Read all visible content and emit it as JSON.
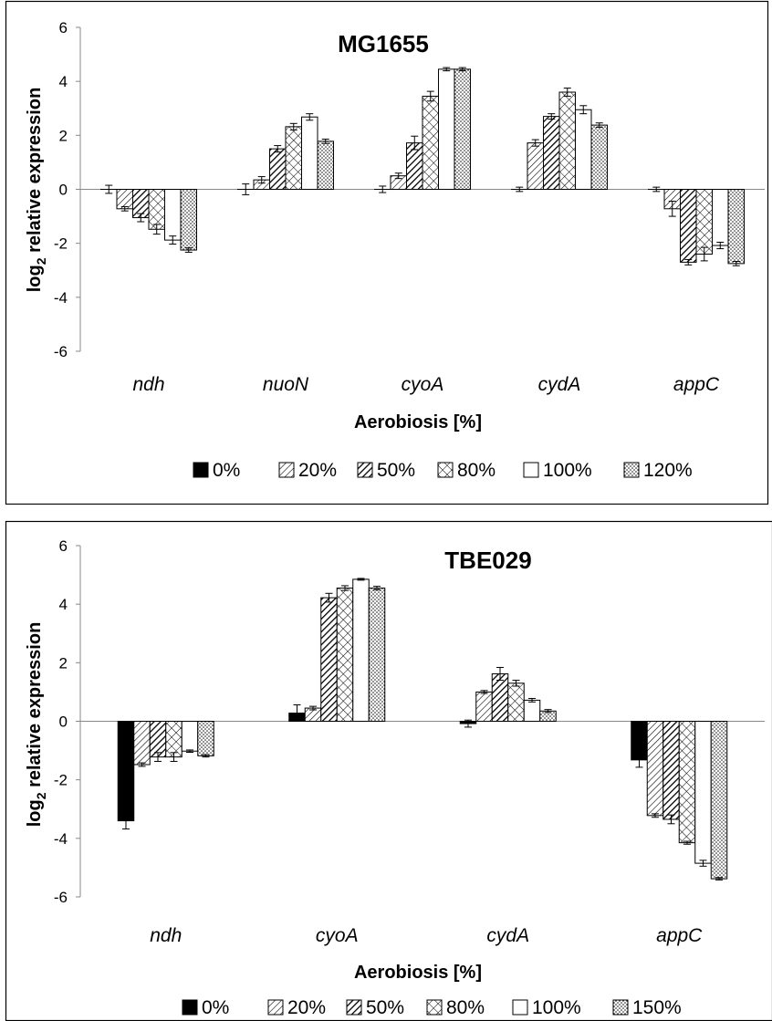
{
  "chart_data": [
    {
      "type": "bar",
      "title": "MG1655",
      "xlabel": "Aerobiosis [%]",
      "ylabel_main": "log",
      "ylabel_sub": "2",
      "ylabel_rest": " relative expression",
      "ylim": [
        -6,
        6
      ],
      "yticks": [
        -6,
        -4,
        -2,
        0,
        2,
        4,
        6
      ],
      "grid": false,
      "legend_position": "bottom",
      "categories": [
        "ndh",
        "nuoN",
        "cyoA",
        "cydA",
        "appC"
      ],
      "series": [
        {
          "name": "0%",
          "pattern": "solid-black",
          "values": [
            0,
            0,
            0,
            0,
            0
          ],
          "errors": [
            0.15,
            0.2,
            0.12,
            0.08,
            0.08
          ]
        },
        {
          "name": "20%",
          "pattern": "diagonal-thin",
          "values": [
            -0.72,
            0.35,
            0.5,
            1.72,
            -0.72
          ],
          "errors": [
            0.08,
            0.12,
            0.1,
            0.12,
            0.28
          ]
        },
        {
          "name": "50%",
          "pattern": "diagonal-thick",
          "values": [
            -1.05,
            1.5,
            1.72,
            2.7,
            -2.7
          ],
          "errors": [
            0.15,
            0.12,
            0.25,
            0.1,
            0.1
          ]
        },
        {
          "name": "80%",
          "pattern": "crosshatch",
          "values": [
            -1.48,
            2.32,
            3.45,
            3.6,
            -2.4
          ],
          "errors": [
            0.18,
            0.12,
            0.18,
            0.15,
            0.25
          ]
        },
        {
          "name": "100%",
          "pattern": "white",
          "values": [
            -1.88,
            2.68,
            4.45,
            2.95,
            -2.08
          ],
          "errors": [
            0.15,
            0.12,
            0.06,
            0.15,
            0.12
          ]
        },
        {
          "name": "120%",
          "pattern": "dots",
          "values": [
            -2.25,
            1.78,
            4.45,
            2.38,
            -2.75
          ],
          "errors": [
            0.08,
            0.08,
            0.06,
            0.08,
            0.08
          ]
        }
      ]
    },
    {
      "type": "bar",
      "title": "TBE029",
      "xlabel": "Aerobiosis [%]",
      "ylabel_main": "log",
      "ylabel_sub": "2",
      "ylabel_rest": " relative expression",
      "ylim": [
        -6,
        6
      ],
      "yticks": [
        -6,
        -4,
        -2,
        0,
        2,
        4,
        6
      ],
      "grid": false,
      "legend_position": "bottom",
      "categories": [
        "ndh",
        "cyoA",
        "cydA",
        "appC"
      ],
      "series": [
        {
          "name": "0%",
          "pattern": "solid-black",
          "values": [
            -3.4,
            0.28,
            -0.08,
            -1.32
          ],
          "errors": [
            0.28,
            0.28,
            0.12,
            0.25
          ]
        },
        {
          "name": "20%",
          "pattern": "diagonal-thin",
          "values": [
            -1.48,
            0.45,
            1.0,
            -3.22
          ],
          "errors": [
            0.06,
            0.06,
            0.05,
            0.06
          ]
        },
        {
          "name": "50%",
          "pattern": "diagonal-thick",
          "values": [
            -1.22,
            4.22,
            1.62,
            -3.35
          ],
          "errors": [
            0.15,
            0.15,
            0.22,
            0.15
          ]
        },
        {
          "name": "80%",
          "pattern": "crosshatch",
          "values": [
            -1.22,
            4.55,
            1.3,
            -4.15
          ],
          "errors": [
            0.15,
            0.08,
            0.1,
            0.05
          ]
        },
        {
          "name": "100%",
          "pattern": "white",
          "values": [
            -1.02,
            4.85,
            0.72,
            -4.85
          ],
          "errors": [
            0.04,
            0.03,
            0.06,
            0.1
          ]
        },
        {
          "name": "150%",
          "pattern": "dots",
          "values": [
            -1.18,
            4.55,
            0.35,
            -5.38
          ],
          "errors": [
            0.04,
            0.06,
            0.05,
            0.04
          ]
        }
      ]
    }
  ]
}
